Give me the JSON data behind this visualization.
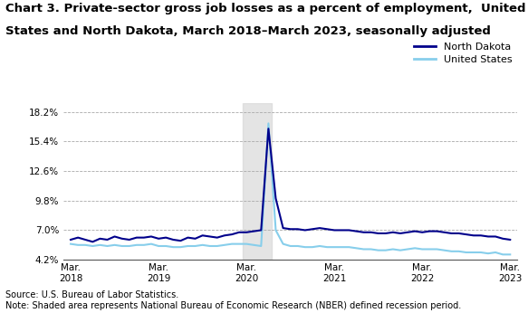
{
  "title_line1": "Chart 3. Private-sector gross job losses as a percent of employment,  United",
  "title_line2": "States and North Dakota, March 2018–March 2023, seasonally adjusted",
  "title_fontsize": 9.5,
  "legend_entries": [
    "North Dakota",
    "United States"
  ],
  "nd_color": "#00008B",
  "us_color": "#87CEEB",
  "recession_shade_color": "#D3D3D3",
  "recession_alpha": 0.6,
  "recession_start": 24,
  "recession_end": 27,
  "yticks": [
    4.2,
    7.0,
    9.8,
    12.6,
    15.4,
    18.2
  ],
  "ylim": [
    4.2,
    19.0
  ],
  "source_text": "Source: U.S. Bureau of Labor Statistics.\nNote: Shaded area represents National Bureau of Economic Research (NBER) defined recession period.",
  "north_dakota": [
    6.1,
    6.3,
    6.1,
    5.9,
    6.2,
    6.1,
    6.4,
    6.2,
    6.1,
    6.3,
    6.3,
    6.4,
    6.2,
    6.3,
    6.1,
    6.0,
    6.3,
    6.2,
    6.5,
    6.4,
    6.3,
    6.5,
    6.6,
    6.8,
    6.8,
    6.9,
    7.0,
    16.6,
    10.0,
    7.2,
    7.1,
    7.1,
    7.0,
    7.1,
    7.2,
    7.1,
    7.0,
    7.0,
    7.0,
    6.9,
    6.8,
    6.8,
    6.7,
    6.7,
    6.8,
    6.7,
    6.8,
    6.9,
    6.8,
    6.9,
    6.9,
    6.8,
    6.7,
    6.7,
    6.6,
    6.5,
    6.5,
    6.4,
    6.4,
    6.2,
    6.1
  ],
  "united_states": [
    5.7,
    5.6,
    5.6,
    5.5,
    5.6,
    5.5,
    5.6,
    5.5,
    5.5,
    5.6,
    5.6,
    5.7,
    5.5,
    5.5,
    5.4,
    5.4,
    5.5,
    5.5,
    5.6,
    5.5,
    5.5,
    5.6,
    5.7,
    5.7,
    5.7,
    5.6,
    5.5,
    17.1,
    7.0,
    5.7,
    5.5,
    5.5,
    5.4,
    5.4,
    5.5,
    5.4,
    5.4,
    5.4,
    5.4,
    5.3,
    5.2,
    5.2,
    5.1,
    5.1,
    5.2,
    5.1,
    5.2,
    5.3,
    5.2,
    5.2,
    5.2,
    5.1,
    5.0,
    5.0,
    4.9,
    4.9,
    4.9,
    4.8,
    4.9,
    4.7,
    4.7
  ],
  "xtick_positions": [
    0,
    12,
    24,
    36,
    48,
    60
  ],
  "xtick_labels": [
    "Mar.\n2018",
    "Mar.\n2019",
    "Mar.\n2020",
    "Mar.\n2021",
    "Mar.\n2022",
    "Mar.\n2023"
  ],
  "background_color": "#FFFFFF",
  "grid_color": "#AAAAAA",
  "linewidth_nd": 1.5,
  "linewidth_us": 1.5
}
